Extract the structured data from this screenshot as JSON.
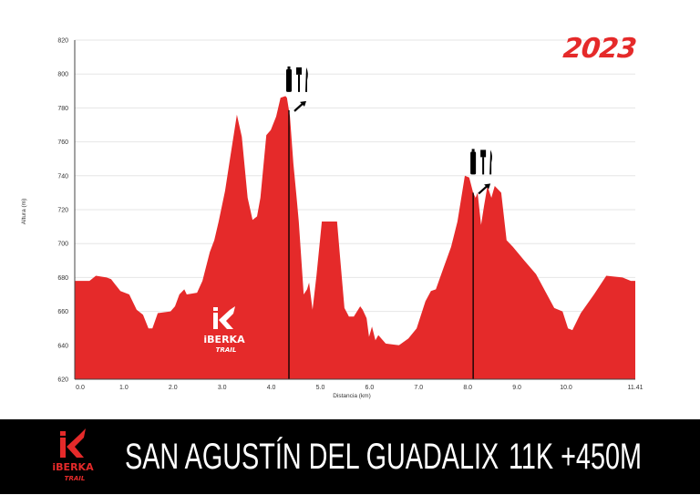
{
  "colors": {
    "profile": "#e52a2a",
    "grid": "#e6e6e6",
    "footer_bg": "#000000",
    "footer_text": "#ffffff",
    "marker": "#000000"
  },
  "year": "2023",
  "logo": {
    "text": "iBERKA",
    "sub": "TRAIL"
  },
  "footer": {
    "title": "SAN AGUSTÍN DEL GUADALIX",
    "stats": "11K +450M"
  },
  "chart_data": {
    "type": "area",
    "xlabel": "Distancia (km)",
    "ylabel": "Altura (m)",
    "xlim": [
      0,
      11.41
    ],
    "ylim": [
      620,
      820
    ],
    "grid": true,
    "x_ticks": [
      "0.0",
      "1.0",
      "2.0",
      "3.0",
      "4.0",
      "5.0",
      "6.0",
      "7.0",
      "8.0",
      "9.0",
      "10.0",
      "11.41"
    ],
    "y_ticks": [
      "620",
      "640",
      "660",
      "680",
      "700",
      "720",
      "740",
      "760",
      "780",
      "800",
      "820"
    ],
    "series": [
      {
        "x": [
          0,
          0.3,
          0.43,
          0.65,
          0.74,
          0.93,
          1.11,
          1.26,
          1.39,
          1.5,
          1.58,
          1.69,
          1.95,
          2.04,
          2.13,
          2.23,
          2.28,
          2.49,
          2.6,
          2.75,
          2.84,
          2.93,
          3.06,
          3.17,
          3.3,
          3.4,
          3.52,
          3.62,
          3.71,
          3.78,
          3.9,
          3.99,
          4.1,
          4.19,
          4.29,
          4.32,
          4.38,
          4.45,
          4.51,
          4.56,
          4.66,
          4.73,
          4.77,
          4.84,
          4.92,
          5.03,
          5.34,
          5.4,
          5.49,
          5.58,
          5.68,
          5.81,
          5.86,
          5.94,
          5.99,
          6.05,
          6.12,
          6.18,
          6.33,
          6.6,
          6.79,
          6.96,
          7.14,
          7.25,
          7.35,
          7.51,
          7.66,
          7.79,
          7.94,
          8.03,
          8.11,
          8.16,
          8.2,
          8.27,
          8.33,
          8.4,
          8.48,
          8.55,
          8.68,
          8.79,
          8.92,
          9.15,
          9.39,
          9.76,
          9.93,
          10.04,
          10.13,
          10.3,
          10.57,
          10.82,
          11.15,
          11.32,
          11.41
        ],
        "y": [
          678,
          678,
          681,
          680,
          679,
          672,
          670,
          661,
          658,
          650,
          650,
          659,
          660,
          663,
          670,
          673,
          670,
          671,
          678,
          695,
          702,
          713,
          731,
          752,
          776,
          763,
          727,
          714,
          716,
          727,
          764,
          767,
          775,
          786,
          787,
          786,
          775,
          747,
          729,
          713,
          670,
          673,
          677,
          661,
          681,
          713,
          713,
          692,
          662,
          657,
          657,
          663,
          661,
          656,
          645,
          651,
          643,
          646,
          641,
          640,
          644,
          650,
          666,
          672,
          673,
          686,
          698,
          713,
          740,
          739,
          730,
          727,
          730,
          711,
          722,
          734,
          727,
          734,
          730,
          702,
          698,
          690,
          682,
          662,
          660,
          650,
          649,
          659,
          670,
          681,
          680,
          678,
          678
        ]
      }
    ],
    "annotations": [
      {
        "x": 4.36,
        "label": "aid-station (water, food)"
      },
      {
        "x": 8.11,
        "label": "aid-station (water, food)"
      }
    ]
  }
}
